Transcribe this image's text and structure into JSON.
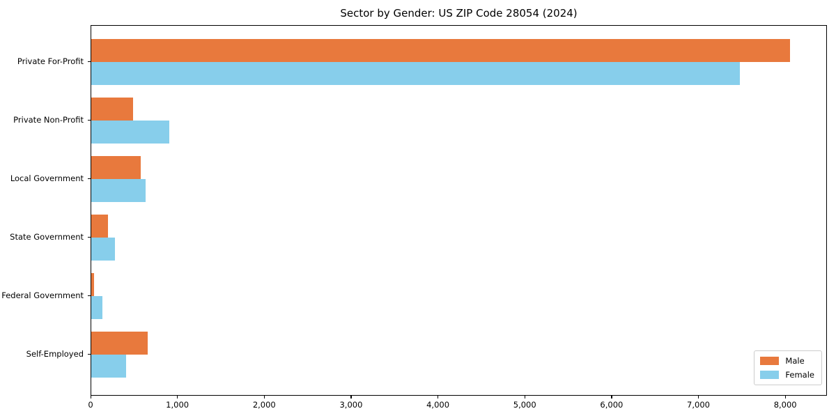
{
  "chart_data": {
    "type": "bar",
    "orientation": "horizontal",
    "title": "Sector by Gender: US ZIP Code 28054 (2024)",
    "categories": [
      "Private For-Profit",
      "Private Non-Profit",
      "Local Government",
      "State Government",
      "Federal Government",
      "Self-Employed"
    ],
    "series": [
      {
        "name": "Male",
        "color": "#e8793d",
        "values": [
          8065,
          480,
          570,
          190,
          30,
          655
        ]
      },
      {
        "name": "Female",
        "color": "#87ceeb",
        "values": [
          7480,
          900,
          630,
          275,
          125,
          400
        ]
      }
    ],
    "xlabel": "",
    "ylabel": "",
    "xlim": [
      0,
      8480
    ],
    "xticks": {
      "values": [
        0,
        1000,
        2000,
        3000,
        4000,
        5000,
        6000,
        7000,
        8000
      ],
      "labels": [
        "0",
        "1,000",
        "2,000",
        "3,000",
        "4,000",
        "5,000",
        "6,000",
        "7,000",
        "8,000"
      ]
    },
    "grid": false,
    "legend": {
      "position": "lower right",
      "entries": [
        "Male",
        "Female"
      ]
    }
  }
}
